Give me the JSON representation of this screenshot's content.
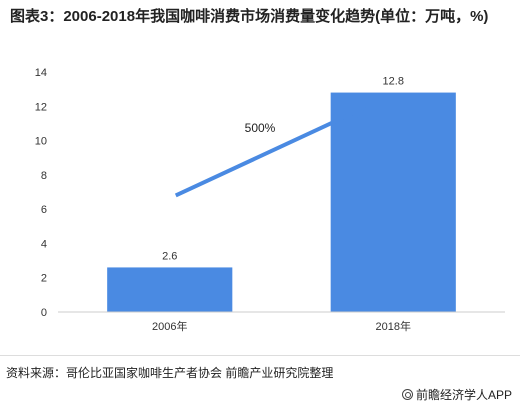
{
  "chart_data": {
    "type": "bar",
    "title": "图表3：2006-2018年我国咖啡消费市场消费量变化趋势(单位：万吨，%)",
    "categories": [
      "2006年",
      "2018年"
    ],
    "values": [
      2.6,
      12.8
    ],
    "data_labels": [
      "2.6",
      "12.8"
    ],
    "ylim": [
      0,
      14
    ],
    "yticks": [
      0,
      2,
      4,
      6,
      8,
      10,
      12,
      14
    ],
    "grid": false,
    "bar_color": "#4a8ae2",
    "annotation": {
      "text": "500%",
      "arrow_color": "#4a8ae2"
    }
  },
  "footer": {
    "source": "资料来源：哥伦比亚国家咖啡生产者协会 前瞻产业研究院整理",
    "brand": "前瞻经济学人APP"
  }
}
